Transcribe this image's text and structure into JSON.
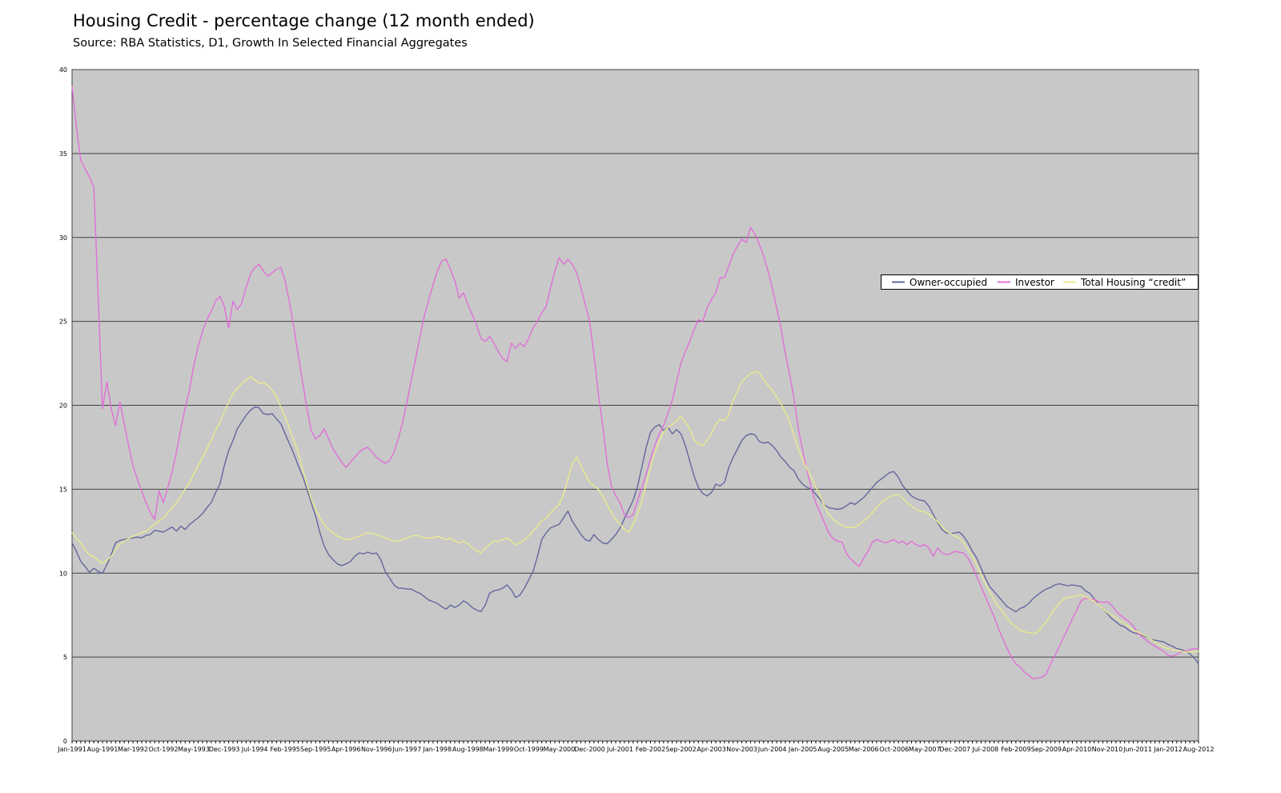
{
  "page": {
    "title": "Housing Credit - percentage change (12 month ended)",
    "source": "Source: RBA Statistics, D1, Growth In Selected Financial Aggregates"
  },
  "chart_data": {
    "type": "line",
    "title": "Housing Credit - percentage change (12 month ended)",
    "subtitle": "Source: RBA Statistics, D1, Growth In Selected Financial Aggregates",
    "plot_bg": "#C8C8C8",
    "grid_color": "#404040",
    "grid": "horizontal",
    "ylim": [
      0,
      40
    ],
    "y_ticks": [
      0,
      5,
      10,
      15,
      20,
      25,
      30,
      35,
      40
    ],
    "x_unit": "monthly",
    "x_tick_step": 7,
    "x_tick_labels": [
      "Jan-1991",
      "Aug-1991",
      "Mar-1992",
      "Oct-1992",
      "May-1993",
      "Dec-1993",
      "Jul-1994",
      "Feb-1995",
      "Sep-1995",
      "Apr-1996",
      "Nov-1996",
      "Jun-1997",
      "Jan-1998",
      "Aug-1998",
      "Mar-1999",
      "Oct-1999",
      "May-2000",
      "Dec-2000",
      "Jul-2001",
      "Feb-2002",
      "Sep-2002",
      "Apr-2003",
      "Nov-2003",
      "Jun-2004",
      "Jan-2005",
      "Aug-2005",
      "Mar-2006",
      "Oct-2006",
      "May-2007",
      "Dec-2007",
      "Jul-2008",
      "Feb-2009",
      "Sep-2009",
      "Apr-2010",
      "Nov-2010",
      "Jun-2011",
      "Jan-2012",
      "Aug-2012"
    ],
    "legend_position": "inside-right",
    "series": [
      {
        "name": "Owner-occupied",
        "color": "#63679E",
        "values": [
          11.8,
          11.3,
          10.7,
          10.4,
          10.05,
          10.3,
          10.1,
          10.0,
          10.5,
          11.1,
          11.8,
          11.95,
          12.0,
          12.05,
          12.1,
          12.15,
          12.1,
          12.25,
          12.3,
          12.55,
          12.5,
          12.45,
          12.6,
          12.75,
          12.5,
          12.8,
          12.6,
          12.9,
          13.1,
          13.3,
          13.55,
          13.9,
          14.2,
          14.8,
          15.3,
          16.4,
          17.3,
          17.9,
          18.6,
          19.0,
          19.4,
          19.7,
          19.9,
          19.85,
          19.5,
          19.45,
          19.5,
          19.2,
          18.9,
          18.3,
          17.7,
          17.1,
          16.4,
          15.8,
          15.0,
          14.2,
          13.4,
          12.4,
          11.6,
          11.1,
          10.8,
          10.55,
          10.45,
          10.55,
          10.7,
          11.0,
          11.2,
          11.15,
          11.25,
          11.15,
          11.2,
          10.8,
          10.1,
          9.7,
          9.3,
          9.1,
          9.1,
          9.05,
          9.05,
          8.9,
          8.8,
          8.6,
          8.4,
          8.3,
          8.2,
          8.0,
          7.85,
          8.1,
          7.95,
          8.1,
          8.35,
          8.2,
          7.95,
          7.8,
          7.7,
          8.1,
          8.8,
          8.95,
          9.0,
          9.1,
          9.3,
          9.0,
          8.55,
          8.7,
          9.1,
          9.6,
          10.1,
          11.0,
          12.0,
          12.4,
          12.7,
          12.8,
          12.9,
          13.3,
          13.7,
          13.1,
          12.7,
          12.3,
          12.0,
          11.9,
          12.3,
          12.0,
          11.8,
          11.75,
          12.0,
          12.3,
          12.7,
          13.25,
          13.8,
          14.35,
          15.15,
          16.3,
          17.5,
          18.4,
          18.7,
          18.85,
          18.5,
          18.7,
          18.3,
          18.55,
          18.3,
          17.6,
          16.7,
          15.8,
          15.1,
          14.75,
          14.6,
          14.8,
          15.3,
          15.2,
          15.4,
          16.3,
          16.9,
          17.4,
          17.9,
          18.2,
          18.3,
          18.25,
          17.85,
          17.75,
          17.8,
          17.6,
          17.3,
          16.9,
          16.65,
          16.3,
          16.1,
          15.6,
          15.3,
          15.1,
          15.0,
          14.7,
          14.4,
          14.05,
          13.9,
          13.85,
          13.8,
          13.85,
          14.0,
          14.2,
          14.1,
          14.3,
          14.5,
          14.8,
          15.1,
          15.4,
          15.6,
          15.8,
          16.0,
          16.05,
          15.7,
          15.2,
          14.9,
          14.6,
          14.45,
          14.35,
          14.3,
          14.0,
          13.5,
          13.0,
          12.6,
          12.4,
          12.35,
          12.4,
          12.45,
          12.2,
          11.8,
          11.3,
          10.9,
          10.3,
          9.7,
          9.2,
          8.9,
          8.6,
          8.3,
          8.0,
          7.85,
          7.7,
          7.9,
          8.0,
          8.2,
          8.5,
          8.7,
          8.9,
          9.05,
          9.15,
          9.3,
          9.37,
          9.3,
          9.25,
          9.3,
          9.25,
          9.2,
          8.95,
          8.8,
          8.5,
          8.1,
          7.9,
          7.6,
          7.3,
          7.1,
          6.9,
          6.8,
          6.6,
          6.45,
          6.4,
          6.3,
          6.2,
          6.05,
          6.0,
          5.95,
          5.9,
          5.75,
          5.65,
          5.5,
          5.45,
          5.35,
          5.2,
          4.95,
          4.6
        ]
      },
      {
        "name": "Investor",
        "color": "#E06FD8",
        "values": [
          39.0,
          36.6,
          34.6,
          34.1,
          33.6,
          33.0,
          26.5,
          19.8,
          21.4,
          19.8,
          18.8,
          20.2,
          18.9,
          17.6,
          16.4,
          15.6,
          14.9,
          14.2,
          13.6,
          13.2,
          14.9,
          14.2,
          15.1,
          16.0,
          17.2,
          18.6,
          19.8,
          20.9,
          22.4,
          23.5,
          24.4,
          25.1,
          25.6,
          26.2,
          26.5,
          25.9,
          24.6,
          26.2,
          25.7,
          26.1,
          27.0,
          27.8,
          28.2,
          28.4,
          28.0,
          27.7,
          27.9,
          28.1,
          28.2,
          27.4,
          26.1,
          24.6,
          23.0,
          21.4,
          19.8,
          18.5,
          18.0,
          18.2,
          18.6,
          18.0,
          17.4,
          17.0,
          16.6,
          16.3,
          16.6,
          16.9,
          17.2,
          17.4,
          17.5,
          17.2,
          16.9,
          16.7,
          16.55,
          16.7,
          17.2,
          18.0,
          19.0,
          20.2,
          21.5,
          22.8,
          24.1,
          25.3,
          26.3,
          27.2,
          28.0,
          28.6,
          28.7,
          28.1,
          27.4,
          26.4,
          26.7,
          26.0,
          25.4,
          24.8,
          24.0,
          23.8,
          24.1,
          23.7,
          23.2,
          22.8,
          22.6,
          23.7,
          23.4,
          23.7,
          23.5,
          24.0,
          24.6,
          25.0,
          25.5,
          25.9,
          27.0,
          28.0,
          28.8,
          28.4,
          28.7,
          28.4,
          27.9,
          27.0,
          26.0,
          25.0,
          23.0,
          20.7,
          18.8,
          16.6,
          15.2,
          14.6,
          14.2,
          13.5,
          13.3,
          13.5,
          14.3,
          15.1,
          15.9,
          16.8,
          17.6,
          18.3,
          18.8,
          19.5,
          20.3,
          21.4,
          22.5,
          23.2,
          23.8,
          24.5,
          25.1,
          25.0,
          25.8,
          26.3,
          26.7,
          27.6,
          27.6,
          28.3,
          29.0,
          29.5,
          29.9,
          29.7,
          30.6,
          30.2,
          29.6,
          28.9,
          28.0,
          27.0,
          25.8,
          24.6,
          23.1,
          21.8,
          20.4,
          18.6,
          17.3,
          16.1,
          15.0,
          14.2,
          13.6,
          13.0,
          12.4,
          12.05,
          11.9,
          11.85,
          11.2,
          10.85,
          10.6,
          10.4,
          10.9,
          11.3,
          11.85,
          12.0,
          11.9,
          11.8,
          11.9,
          12.0,
          11.8,
          11.9,
          11.7,
          11.9,
          11.7,
          11.6,
          11.7,
          11.5,
          11.0,
          11.5,
          11.2,
          11.1,
          11.15,
          11.3,
          11.25,
          11.2,
          10.9,
          10.4,
          9.8,
          9.2,
          8.6,
          8.0,
          7.4,
          6.7,
          6.1,
          5.5,
          5.0,
          4.6,
          4.4,
          4.1,
          3.9,
          3.7,
          3.75,
          3.8,
          4.0,
          4.6,
          5.1,
          5.65,
          6.2,
          6.7,
          7.3,
          7.8,
          8.35,
          8.5,
          8.45,
          8.45,
          8.3,
          8.25,
          8.3,
          8.1,
          7.75,
          7.5,
          7.3,
          7.1,
          6.85,
          6.45,
          6.2,
          6.0,
          5.8,
          5.65,
          5.5,
          5.35,
          5.1,
          5.05,
          5.15,
          5.3,
          5.35,
          5.45,
          5.5,
          5.5
        ]
      },
      {
        "name": "Total Housing “credit”",
        "color": "#EAEA8E",
        "values": [
          12.4,
          12.1,
          11.8,
          11.4,
          11.1,
          11.0,
          10.75,
          10.6,
          10.75,
          11.0,
          11.4,
          11.7,
          11.9,
          12.05,
          12.2,
          12.3,
          12.4,
          12.5,
          12.7,
          12.9,
          13.1,
          13.3,
          13.6,
          13.9,
          14.2,
          14.6,
          15.0,
          15.4,
          15.9,
          16.4,
          16.9,
          17.4,
          17.9,
          18.5,
          19.0,
          19.6,
          20.2,
          20.7,
          21.0,
          21.3,
          21.5,
          21.7,
          21.5,
          21.3,
          21.35,
          21.2,
          20.9,
          20.5,
          19.9,
          19.3,
          18.6,
          17.9,
          17.2,
          16.2,
          15.3,
          14.4,
          13.8,
          13.3,
          12.9,
          12.6,
          12.4,
          12.2,
          12.1,
          12.0,
          12.0,
          12.1,
          12.2,
          12.3,
          12.4,
          12.35,
          12.3,
          12.2,
          12.1,
          12.0,
          11.9,
          11.9,
          12.0,
          12.1,
          12.2,
          12.25,
          12.2,
          12.1,
          12.1,
          12.1,
          12.2,
          12.1,
          12.0,
          12.1,
          11.9,
          11.8,
          11.9,
          11.75,
          11.5,
          11.35,
          11.2,
          11.5,
          11.7,
          11.9,
          11.9,
          12.0,
          12.1,
          11.9,
          11.7,
          11.8,
          12.0,
          12.2,
          12.5,
          12.8,
          13.1,
          13.3,
          13.6,
          13.85,
          14.1,
          14.7,
          15.6,
          16.5,
          16.9,
          16.4,
          15.9,
          15.4,
          15.2,
          15.0,
          14.6,
          14.1,
          13.6,
          13.2,
          12.9,
          12.6,
          12.45,
          12.9,
          13.5,
          14.3,
          15.3,
          16.3,
          17.2,
          17.9,
          18.4,
          18.7,
          18.85,
          19.1,
          19.35,
          19.0,
          18.6,
          17.95,
          17.7,
          17.6,
          17.9,
          18.3,
          18.85,
          19.15,
          19.1,
          19.45,
          20.3,
          20.85,
          21.4,
          21.65,
          21.9,
          22.0,
          21.95,
          21.5,
          21.2,
          20.9,
          20.5,
          20.1,
          19.6,
          19.0,
          18.2,
          17.4,
          16.75,
          16.2,
          15.7,
          15.15,
          14.6,
          14.0,
          13.5,
          13.2,
          13.0,
          12.85,
          12.75,
          12.7,
          12.75,
          12.9,
          13.1,
          13.35,
          13.6,
          13.9,
          14.2,
          14.4,
          14.55,
          14.65,
          14.7,
          14.45,
          14.2,
          14.0,
          13.8,
          13.7,
          13.65,
          13.5,
          13.3,
          13.05,
          12.8,
          12.5,
          12.35,
          12.2,
          12.1,
          11.8,
          11.4,
          11.0,
          10.5,
          9.9,
          9.4,
          8.9,
          8.4,
          8.0,
          7.7,
          7.3,
          7.0,
          6.8,
          6.6,
          6.5,
          6.45,
          6.4,
          6.5,
          6.8,
          7.1,
          7.5,
          7.9,
          8.2,
          8.45,
          8.55,
          8.6,
          8.65,
          8.7,
          8.6,
          8.45,
          8.35,
          8.1,
          7.9,
          7.65,
          7.5,
          7.35,
          7.15,
          7.0,
          6.8,
          6.6,
          6.5,
          6.35,
          6.25,
          6.05,
          5.9,
          5.7,
          5.6,
          5.5,
          5.45,
          5.4,
          5.35,
          5.3,
          5.3,
          5.3,
          5.35
        ]
      }
    ]
  }
}
